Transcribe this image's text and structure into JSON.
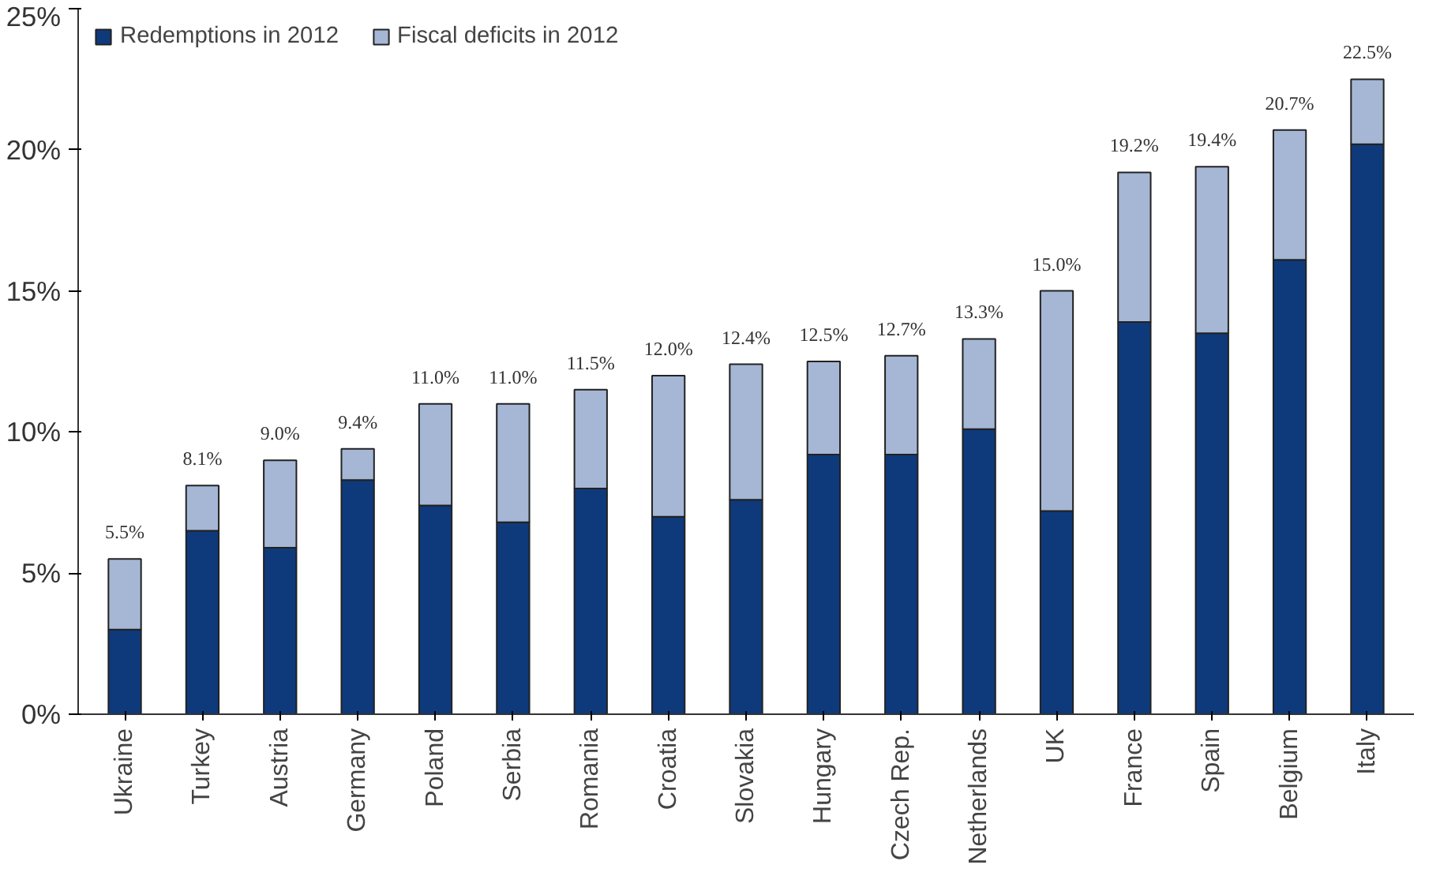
{
  "chart_data": {
    "type": "bar",
    "stacked": true,
    "categories": [
      "Ukraine",
      "Turkey",
      "Austria",
      "Germany",
      "Poland",
      "Serbia",
      "Romania",
      "Croatia",
      "Slovakia",
      "Hungary",
      "Czech Rep.",
      "Netherlands",
      "UK",
      "France",
      "Spain",
      "Belgium",
      "Italy"
    ],
    "series": [
      {
        "name": "Redemptions in 2012",
        "color": "#0e3a7c",
        "values": [
          3.0,
          6.5,
          5.9,
          8.3,
          7.4,
          6.8,
          8.0,
          7.0,
          7.6,
          9.2,
          9.2,
          10.1,
          7.2,
          13.9,
          13.5,
          16.1,
          20.2
        ]
      },
      {
        "name": "Fiscal deficits in 2012",
        "color": "#a5b7d5",
        "values": [
          2.5,
          1.6,
          3.1,
          1.1,
          3.6,
          4.2,
          3.5,
          5.0,
          4.8,
          3.3,
          3.5,
          3.2,
          7.8,
          5.3,
          5.9,
          4.6,
          2.3
        ]
      }
    ],
    "totals": [
      "5.5%",
      "8.1%",
      "9.0%",
      "9.4%",
      "11.0%",
      "11.0%",
      "11.5%",
      "12.0%",
      "12.4%",
      "12.5%",
      "12.7%",
      "13.3%",
      "15.0%",
      "19.2%",
      "19.4%",
      "20.7%",
      "22.5%"
    ],
    "ylim": [
      0,
      25
    ],
    "yticks": [
      {
        "value": 0,
        "label": "0%"
      },
      {
        "value": 5,
        "label": "5%"
      },
      {
        "value": 10,
        "label": "10%"
      },
      {
        "value": 15,
        "label": "15%"
      },
      {
        "value": 20,
        "label": "20%"
      },
      {
        "value": 25,
        "label": "25%"
      }
    ],
    "grid": false,
    "legend": "top left"
  }
}
